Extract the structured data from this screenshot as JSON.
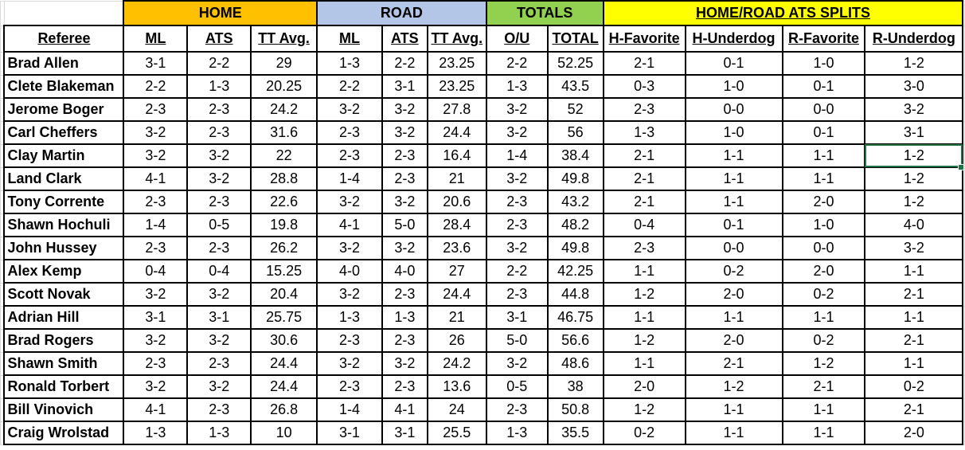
{
  "group_headers": [
    {
      "label": "HOME",
      "color": "#ffc000"
    },
    {
      "label": "ROAD",
      "color": "#b4c6e7"
    },
    {
      "label": "TOTALS",
      "color": "#92d050"
    },
    {
      "label": "HOME/ROAD ATS SPLITS",
      "color": "#ffff00"
    }
  ],
  "column_headers": [
    "Referee",
    "ML",
    "ATS",
    "TT Avg.",
    "ML",
    "ATS",
    "TT Avg.",
    "O/U",
    "TOTAL",
    "H-Favorite",
    "H-Underdog",
    "R-Favorite",
    "R-Underdog"
  ],
  "rows": [
    [
      "Brad Allen",
      "3-1",
      "2-2",
      "29",
      "1-3",
      "2-2",
      "23.25",
      "2-2",
      "52.25",
      "2-1",
      "0-1",
      "1-0",
      "1-2"
    ],
    [
      "Clete Blakeman",
      "2-2",
      "1-3",
      "20.25",
      "2-2",
      "3-1",
      "23.25",
      "1-3",
      "43.5",
      "0-3",
      "1-0",
      "0-1",
      "3-0"
    ],
    [
      "Jerome Boger",
      "2-3",
      "2-3",
      "24.2",
      "3-2",
      "3-2",
      "27.8",
      "3-2",
      "52",
      "2-3",
      "0-0",
      "0-0",
      "3-2"
    ],
    [
      "Carl Cheffers",
      "3-2",
      "2-3",
      "31.6",
      "2-3",
      "3-2",
      "24.4",
      "3-2",
      "56",
      "1-3",
      "1-0",
      "0-1",
      "3-1"
    ],
    [
      "Clay Martin",
      "3-2",
      "3-2",
      "22",
      "2-3",
      "2-3",
      "16.4",
      "1-4",
      "38.4",
      "2-1",
      "1-1",
      "1-1",
      "1-2"
    ],
    [
      "Land Clark",
      "4-1",
      "3-2",
      "28.8",
      "1-4",
      "2-3",
      "21",
      "3-2",
      "49.8",
      "2-1",
      "1-1",
      "1-1",
      "1-2"
    ],
    [
      "Tony Corrente",
      "2-3",
      "2-3",
      "22.6",
      "3-2",
      "3-2",
      "20.6",
      "2-3",
      "43.2",
      "2-1",
      "1-1",
      "2-0",
      "1-2"
    ],
    [
      "Shawn Hochuli",
      "1-4",
      "0-5",
      "19.8",
      "4-1",
      "5-0",
      "28.4",
      "2-3",
      "48.2",
      "0-4",
      "0-1",
      "1-0",
      "4-0"
    ],
    [
      "John Hussey",
      "2-3",
      "2-3",
      "26.2",
      "3-2",
      "3-2",
      "23.6",
      "3-2",
      "49.8",
      "2-3",
      "0-0",
      "0-0",
      "3-2"
    ],
    [
      "Alex Kemp",
      "0-4",
      "0-4",
      "15.25",
      "4-0",
      "4-0",
      "27",
      "2-2",
      "42.25",
      "1-1",
      "0-2",
      "2-0",
      "1-1"
    ],
    [
      "Scott Novak",
      "3-2",
      "3-2",
      "20.4",
      "3-2",
      "2-3",
      "24.4",
      "2-3",
      "44.8",
      "1-2",
      "2-0",
      "0-2",
      "2-1"
    ],
    [
      "Adrian Hill",
      "3-1",
      "3-1",
      "25.75",
      "1-3",
      "1-3",
      "21",
      "3-1",
      "46.75",
      "1-1",
      "1-1",
      "1-1",
      "1-1"
    ],
    [
      "Brad Rogers",
      "3-2",
      "3-2",
      "30.6",
      "2-3",
      "2-3",
      "26",
      "5-0",
      "56.6",
      "1-2",
      "2-0",
      "0-2",
      "2-1"
    ],
    [
      "Shawn Smith",
      "2-3",
      "2-3",
      "24.4",
      "3-2",
      "3-2",
      "24.2",
      "3-2",
      "48.6",
      "1-1",
      "2-1",
      "1-2",
      "1-1"
    ],
    [
      "Ronald Torbert",
      "3-2",
      "3-2",
      "24.4",
      "2-3",
      "2-3",
      "13.6",
      "0-5",
      "38",
      "2-0",
      "1-2",
      "2-1",
      "0-2"
    ],
    [
      "Bill Vinovich",
      "4-1",
      "2-3",
      "26.8",
      "1-4",
      "4-1",
      "24",
      "2-3",
      "50.8",
      "1-2",
      "1-1",
      "1-1",
      "2-1"
    ],
    [
      "Craig Wrolstad",
      "1-3",
      "1-3",
      "10",
      "3-1",
      "3-1",
      "25.5",
      "1-3",
      "35.5",
      "0-2",
      "1-1",
      "1-1",
      "2-0"
    ]
  ],
  "selection": {
    "row": 4,
    "col": 12,
    "color": "#217346"
  },
  "grid_color": "#dadada"
}
